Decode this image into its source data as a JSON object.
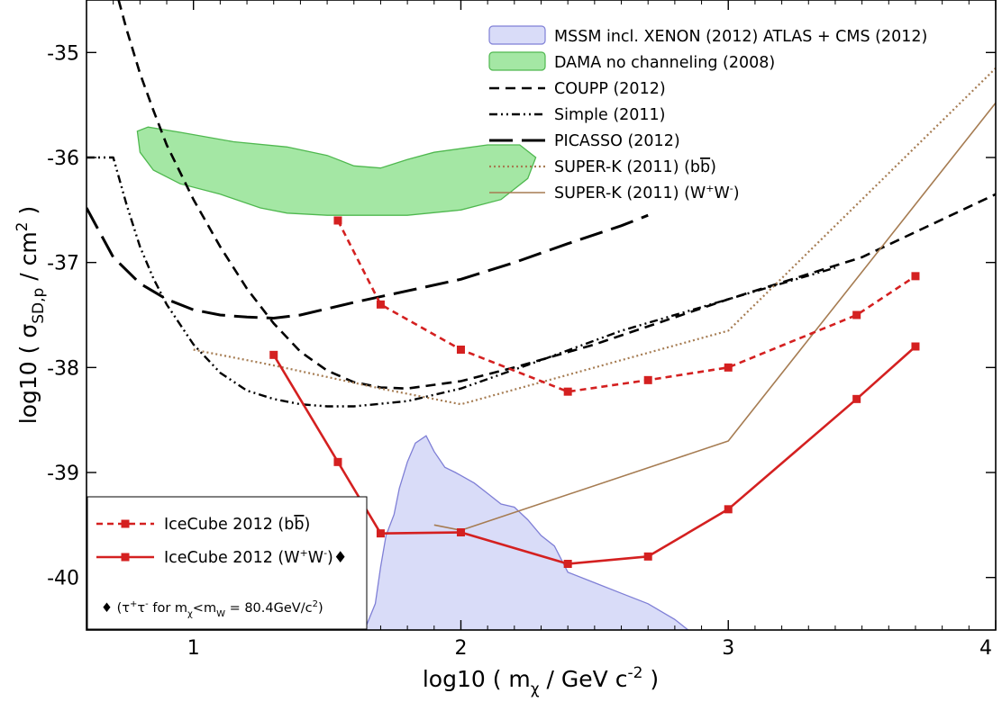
{
  "chart_data": {
    "type": "line",
    "xlabel": "log10 ( m_χ / GeV c⁻² )",
    "ylabel": "log10 ( σ_SD,p / cm² )",
    "xlim": [
      0.6,
      4.0
    ],
    "ylim": [
      -40.5,
      -34.5
    ],
    "x_ticks": [
      1,
      2,
      3,
      4
    ],
    "y_ticks": [
      -35,
      -36,
      -37,
      -38,
      -39,
      -40
    ],
    "grid": false,
    "legend_position": "top-right",
    "series": [
      {
        "name": "MSSM incl. XENON (2012) ATLAS + CMS (2012)",
        "style": "filled-region",
        "color": "#7f7fd6",
        "fill": "#d9dcf8",
        "points": [
          [
            1.64,
            -40.5
          ],
          [
            1.68,
            -40.25
          ],
          [
            1.7,
            -39.9
          ],
          [
            1.72,
            -39.6
          ],
          [
            1.75,
            -39.4
          ],
          [
            1.77,
            -39.15
          ],
          [
            1.8,
            -38.9
          ],
          [
            1.83,
            -38.72
          ],
          [
            1.87,
            -38.65
          ],
          [
            1.9,
            -38.8
          ],
          [
            1.94,
            -38.95
          ],
          [
            1.98,
            -39.0
          ],
          [
            2.05,
            -39.1
          ],
          [
            2.1,
            -39.2
          ],
          [
            2.15,
            -39.3
          ],
          [
            2.2,
            -39.33
          ],
          [
            2.25,
            -39.45
          ],
          [
            2.3,
            -39.6
          ],
          [
            2.35,
            -39.7
          ],
          [
            2.4,
            -39.95
          ],
          [
            2.5,
            -40.05
          ],
          [
            2.6,
            -40.15
          ],
          [
            2.7,
            -40.25
          ],
          [
            2.8,
            -40.4
          ],
          [
            2.85,
            -40.5
          ]
        ]
      },
      {
        "name": "DAMA no channeling (2008)",
        "style": "filled-region",
        "color": "#4fb84f",
        "fill": "#a4e7a4",
        "points": [
          [
            0.79,
            -35.75
          ],
          [
            0.8,
            -35.95
          ],
          [
            0.85,
            -36.12
          ],
          [
            0.95,
            -36.25
          ],
          [
            1.1,
            -36.35
          ],
          [
            1.25,
            -36.48
          ],
          [
            1.35,
            -36.53
          ],
          [
            1.5,
            -36.55
          ],
          [
            1.8,
            -36.55
          ],
          [
            2.0,
            -36.5
          ],
          [
            2.15,
            -36.4
          ],
          [
            2.25,
            -36.2
          ],
          [
            2.28,
            -36.0
          ],
          [
            2.22,
            -35.88
          ],
          [
            2.1,
            -35.88
          ],
          [
            1.9,
            -35.95
          ],
          [
            1.8,
            -36.02
          ],
          [
            1.7,
            -36.1
          ],
          [
            1.6,
            -36.08
          ],
          [
            1.5,
            -35.98
          ],
          [
            1.35,
            -35.9
          ],
          [
            1.15,
            -35.85
          ],
          [
            0.95,
            -35.76
          ],
          [
            0.83,
            -35.71
          ]
        ]
      },
      {
        "name": "COUPP (2012)",
        "style": "dashed",
        "color": "#000000",
        "points": [
          [
            0.72,
            -34.5
          ],
          [
            0.75,
            -34.78
          ],
          [
            0.8,
            -35.2
          ],
          [
            0.85,
            -35.55
          ],
          [
            0.9,
            -35.88
          ],
          [
            1.0,
            -36.4
          ],
          [
            1.1,
            -36.85
          ],
          [
            1.2,
            -37.25
          ],
          [
            1.3,
            -37.58
          ],
          [
            1.4,
            -37.85
          ],
          [
            1.5,
            -38.03
          ],
          [
            1.6,
            -38.14
          ],
          [
            1.7,
            -38.19
          ],
          [
            1.8,
            -38.2
          ],
          [
            2.0,
            -38.13
          ],
          [
            2.2,
            -38.0
          ],
          [
            2.5,
            -37.78
          ],
          [
            3.0,
            -37.35
          ],
          [
            3.5,
            -36.95
          ],
          [
            4.0,
            -36.35
          ]
        ]
      },
      {
        "name": "Simple (2011)",
        "style": "dashdot",
        "color": "#000000",
        "points": [
          [
            0.6,
            -36.0
          ],
          [
            0.7,
            -36.0
          ],
          [
            0.75,
            -36.45
          ],
          [
            0.8,
            -36.85
          ],
          [
            0.85,
            -37.15
          ],
          [
            0.9,
            -37.4
          ],
          [
            1.0,
            -37.78
          ],
          [
            1.1,
            -38.05
          ],
          [
            1.2,
            -38.22
          ],
          [
            1.3,
            -38.3
          ],
          [
            1.4,
            -38.35
          ],
          [
            1.5,
            -38.37
          ],
          [
            1.6,
            -38.37
          ],
          [
            1.8,
            -38.32
          ],
          [
            2.0,
            -38.2
          ],
          [
            2.3,
            -37.93
          ],
          [
            2.6,
            -37.65
          ],
          [
            3.0,
            -37.35
          ],
          [
            3.4,
            -37.05
          ]
        ]
      },
      {
        "name": "PICASSO (2012)",
        "style": "longdash",
        "color": "#000000",
        "points": [
          [
            0.6,
            -36.48
          ],
          [
            0.7,
            -36.95
          ],
          [
            0.8,
            -37.2
          ],
          [
            0.9,
            -37.35
          ],
          [
            1.0,
            -37.45
          ],
          [
            1.1,
            -37.5
          ],
          [
            1.2,
            -37.52
          ],
          [
            1.3,
            -37.53
          ],
          [
            1.4,
            -37.5
          ],
          [
            1.6,
            -37.38
          ],
          [
            1.8,
            -37.27
          ],
          [
            2.0,
            -37.16
          ],
          [
            2.2,
            -37.0
          ],
          [
            2.4,
            -36.82
          ],
          [
            2.6,
            -36.65
          ],
          [
            2.7,
            -36.55
          ]
        ]
      },
      {
        "name": "SUPER-K (2011) (bb̄)",
        "style": "dotted",
        "color": "#a67c52",
        "points": [
          [
            1.0,
            -37.83
          ],
          [
            1.3,
            -37.98
          ],
          [
            1.7,
            -38.2
          ],
          [
            2.0,
            -38.35
          ],
          [
            3.0,
            -37.65
          ],
          [
            4.0,
            -35.15
          ]
        ]
      },
      {
        "name": "SUPER-K (2011) (W⁺W⁻)",
        "style": "solid-thin",
        "color": "#a67c52",
        "points": [
          [
            1.9,
            -39.5
          ],
          [
            2.0,
            -39.55
          ],
          [
            3.0,
            -38.7
          ],
          [
            4.0,
            -35.48
          ]
        ]
      },
      {
        "name": "IceCube 2012 (bb̄)",
        "style": "dashed-markers",
        "color": "#d42020",
        "points": [
          [
            1.54,
            -36.6
          ],
          [
            1.7,
            -37.4
          ],
          [
            2.0,
            -37.83
          ],
          [
            2.4,
            -38.23
          ],
          [
            2.7,
            -38.12
          ],
          [
            3.0,
            -38.0
          ],
          [
            3.48,
            -37.5
          ],
          [
            3.7,
            -37.13
          ]
        ]
      },
      {
        "name": "IceCube 2012 (W⁺W⁻)♦",
        "style": "solid-markers",
        "color": "#d42020",
        "points": [
          [
            1.3,
            -37.88
          ],
          [
            1.54,
            -38.9
          ],
          [
            1.7,
            -39.58
          ],
          [
            2.0,
            -39.57
          ],
          [
            2.4,
            -39.87
          ],
          [
            2.7,
            -39.8
          ],
          [
            3.0,
            -39.35
          ],
          [
            3.48,
            -38.3
          ],
          [
            3.7,
            -37.8
          ]
        ]
      }
    ],
    "annotations": [
      {
        "text": "♦ (τ⁺τ⁻ for m_χ<m_W = 80.4GeV/c²)"
      }
    ]
  }
}
